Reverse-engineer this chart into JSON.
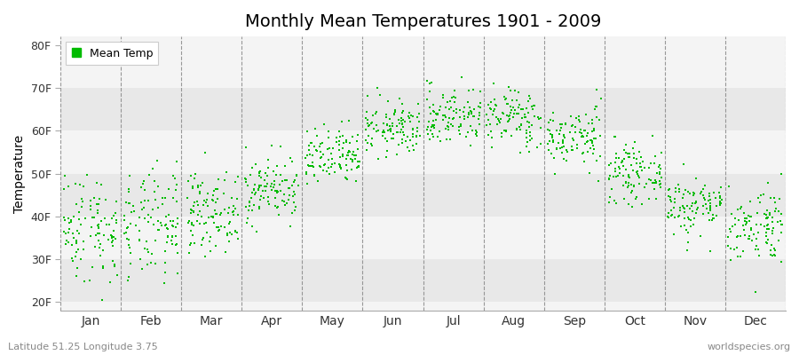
{
  "title": "Monthly Mean Temperatures 1901 - 2009",
  "ylabel": "Temperature",
  "xlabel_months": [
    "Jan",
    "Feb",
    "Mar",
    "Apr",
    "May",
    "Jun",
    "Jul",
    "Aug",
    "Sep",
    "Oct",
    "Nov",
    "Dec"
  ],
  "subtitle": "Latitude 51.25 Longitude 3.75",
  "watermark": "worldspecies.org",
  "legend_label": "Mean Temp",
  "dot_color": "#00BB00",
  "dot_size": 3,
  "bg_color": "#ffffff",
  "plot_bg_color": "#f4f4f4",
  "band_light": "#f4f4f4",
  "band_dark": "#e8e8e8",
  "yticks": [
    20,
    30,
    40,
    50,
    60,
    70,
    80
  ],
  "ytick_labels": [
    "20F",
    "30F",
    "40F",
    "50F",
    "60F",
    "70F",
    "80F"
  ],
  "ylim": [
    18,
    82
  ],
  "monthly_means_F": [
    37.5,
    37.5,
    41.0,
    46.5,
    53.5,
    60.5,
    63.5,
    63.0,
    58.5,
    50.0,
    42.5,
    38.0
  ],
  "monthly_std_F": [
    6.5,
    6.5,
    4.5,
    3.8,
    3.5,
    3.2,
    3.5,
    3.5,
    3.5,
    3.2,
    3.5,
    4.5
  ],
  "n_years": 109,
  "seed": 42
}
